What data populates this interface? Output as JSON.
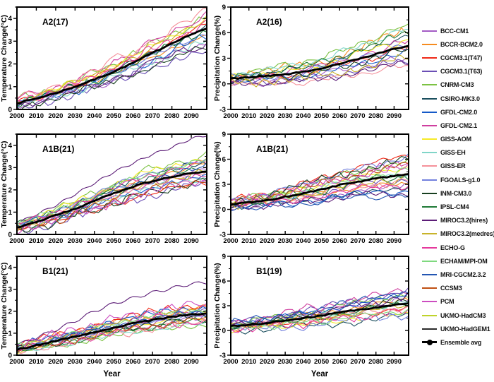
{
  "figure": {
    "xlabel": "Year",
    "background": "#ffffff",
    "axis_color": "#000000"
  },
  "legend": {
    "items": [
      {
        "label": "BCC-CM1",
        "color": "#a35bc4",
        "marker": false
      },
      {
        "label": "BCCR-BCM2.0",
        "color": "#f68b1f",
        "marker": false
      },
      {
        "label": "CGCM3.1(T47)",
        "color": "#ef2917",
        "marker": false
      },
      {
        "label": "CGCM3.1(T63)",
        "color": "#6b4fb5",
        "marker": false
      },
      {
        "label": "CNRM-CM3",
        "color": "#7cc243",
        "marker": false
      },
      {
        "label": "CSIRO-MK3.0",
        "color": "#1b4f5e",
        "marker": false
      },
      {
        "label": "GFDL-CM2.0",
        "color": "#1459c8",
        "marker": false
      },
      {
        "label": "GFDL-CM2.1",
        "color": "#cf3f9f",
        "marker": false
      },
      {
        "label": "GISS-AOM",
        "color": "#f6ea27",
        "marker": false
      },
      {
        "label": "GISS-EH",
        "color": "#80d5c8",
        "marker": false
      },
      {
        "label": "GISS-ER",
        "color": "#f5909a",
        "marker": false
      },
      {
        "label": "FGOALS-g1.0",
        "color": "#7381de",
        "marker": false
      },
      {
        "label": "INM-CM3.0",
        "color": "#173f1f",
        "marker": false
      },
      {
        "label": "IPSL-CM4",
        "color": "#1f7a36",
        "marker": false
      },
      {
        "label": "MIROC3.2(hires)",
        "color": "#5c1d77",
        "marker": false
      },
      {
        "label": "MIROC3.2(medres)",
        "color": "#c8b32a",
        "marker": false
      },
      {
        "label": "ECHO-G",
        "color": "#e53a9c",
        "marker": false
      },
      {
        "label": "ECHAM/MPI-OM",
        "color": "#7fd97f",
        "marker": false
      },
      {
        "label": "MRI-CGCM2.3.2",
        "color": "#2356b2",
        "marker": false
      },
      {
        "label": "CCSM3",
        "color": "#c04f12",
        "marker": false
      },
      {
        "label": "PCM",
        "color": "#cc4dc0",
        "marker": false
      },
      {
        "label": "UKMO-HadCM3",
        "color": "#bfd32b",
        "marker": false
      },
      {
        "label": "UKMO-HadGEM1",
        "color": "#2a2a2a",
        "marker": false
      },
      {
        "label": "Ensemble avg",
        "color": "#000000",
        "marker": true
      }
    ]
  },
  "chart_data": [
    {
      "type": "line",
      "title": "A2(17)",
      "ylabel": "Temperature Change(°C)",
      "xlabel": "",
      "grid": false,
      "legend_position": "right-of-figure",
      "ylim": [
        0,
        4.5
      ],
      "yticks": [
        0,
        1,
        2,
        3,
        4
      ],
      "y_minor_step": 0.5,
      "xlim": [
        2000,
        2098
      ],
      "xticks": [
        2000,
        2010,
        2020,
        2030,
        2040,
        2050,
        2060,
        2070,
        2080,
        2090
      ],
      "n_models": 17,
      "outlier_model": null,
      "x_anchors": [
        2000,
        2010,
        2020,
        2030,
        2040,
        2050,
        2060,
        2070,
        2080,
        2090,
        2098
      ],
      "ensemble": [
        0.28,
        0.48,
        0.72,
        1.0,
        1.32,
        1.66,
        2.05,
        2.48,
        2.92,
        3.3,
        3.55
      ],
      "env_min": [
        0.1,
        0.25,
        0.45,
        0.65,
        0.9,
        1.15,
        1.45,
        1.8,
        2.1,
        2.4,
        2.5
      ],
      "env_max": [
        0.45,
        0.75,
        1.0,
        1.35,
        1.7,
        2.2,
        2.6,
        3.05,
        3.5,
        4.0,
        4.45
      ],
      "env_max_typical": [
        0.45,
        0.75,
        1.0,
        1.35,
        1.7,
        2.2,
        2.6,
        3.05,
        3.5,
        4.0,
        4.45
      ]
    },
    {
      "type": "line",
      "title": "A2(16)",
      "ylabel": "Precipitation Change(%)",
      "xlabel": "",
      "grid": false,
      "legend_position": "right-of-figure",
      "ylim": [
        -3,
        9
      ],
      "yticks": [
        -3,
        0,
        3,
        6,
        9
      ],
      "y_minor_step": 1.5,
      "xlim": [
        2000,
        2098
      ],
      "xticks": [
        2000,
        2010,
        2020,
        2030,
        2040,
        2050,
        2060,
        2070,
        2080,
        2090
      ],
      "n_models": 16,
      "outlier_model": null,
      "x_anchors": [
        2000,
        2010,
        2020,
        2030,
        2040,
        2050,
        2060,
        2070,
        2080,
        2090,
        2098
      ],
      "ensemble": [
        0.6,
        0.75,
        0.95,
        1.1,
        1.4,
        1.8,
        2.3,
        2.9,
        3.5,
        4.1,
        4.4
      ],
      "env_min": [
        0.0,
        0.0,
        -0.1,
        0.0,
        0.1,
        0.3,
        0.6,
        1.0,
        1.3,
        1.7,
        1.9
      ],
      "env_max": [
        1.0,
        1.5,
        1.8,
        2.2,
        2.6,
        3.2,
        3.9,
        4.8,
        5.6,
        6.5,
        7.0
      ],
      "env_max_typical": [
        1.0,
        1.5,
        1.8,
        2.2,
        2.6,
        3.2,
        3.9,
        4.8,
        5.6,
        6.5,
        7.0
      ]
    },
    {
      "type": "line",
      "title": "A1B(21)",
      "ylabel": "Temperature Change(°C)",
      "xlabel": "",
      "grid": false,
      "legend_position": "right-of-figure",
      "ylim": [
        0,
        4.5
      ],
      "yticks": [
        0,
        1,
        2,
        3,
        4
      ],
      "y_minor_step": 0.5,
      "xlim": [
        2000,
        2098
      ],
      "xticks": [
        2000,
        2010,
        2020,
        2030,
        2040,
        2050,
        2060,
        2070,
        2080,
        2090
      ],
      "n_models": 21,
      "outlier_model": "MIROC3.2(hires)",
      "x_anchors": [
        2000,
        2010,
        2020,
        2030,
        2040,
        2050,
        2060,
        2070,
        2080,
        2090,
        2098
      ],
      "ensemble": [
        0.3,
        0.55,
        0.85,
        1.15,
        1.5,
        1.85,
        2.15,
        2.4,
        2.6,
        2.75,
        2.8
      ],
      "env_min": [
        0.1,
        0.3,
        0.5,
        0.75,
        1.0,
        1.3,
        1.55,
        1.75,
        1.95,
        2.1,
        2.1
      ],
      "env_max": [
        0.5,
        0.9,
        1.3,
        1.8,
        2.3,
        2.8,
        3.2,
        3.6,
        3.9,
        4.3,
        4.45
      ],
      "env_max_typical": [
        0.5,
        0.85,
        1.15,
        1.5,
        1.9,
        2.3,
        2.65,
        2.95,
        3.2,
        3.4,
        3.6
      ]
    },
    {
      "type": "line",
      "title": "A1B(21)",
      "ylabel": "Precipitation Change(%)",
      "xlabel": "",
      "grid": false,
      "legend_position": "right-of-figure",
      "ylim": [
        -3,
        9
      ],
      "yticks": [
        -3,
        0,
        3,
        6,
        9
      ],
      "y_minor_step": 1.5,
      "xlim": [
        2000,
        2098
      ],
      "xticks": [
        2000,
        2010,
        2020,
        2030,
        2040,
        2050,
        2060,
        2070,
        2080,
        2090
      ],
      "n_models": 21,
      "outlier_model": null,
      "x_anchors": [
        2000,
        2010,
        2020,
        2030,
        2040,
        2050,
        2060,
        2070,
        2080,
        2090,
        2098
      ],
      "ensemble": [
        0.6,
        0.85,
        1.1,
        1.5,
        1.9,
        2.4,
        2.9,
        3.3,
        3.7,
        4.0,
        4.2
      ],
      "env_min": [
        0.1,
        0.2,
        0.3,
        0.4,
        0.6,
        0.8,
        1.1,
        1.4,
        1.5,
        1.3,
        1.5
      ],
      "env_max": [
        1.1,
        1.6,
        2.0,
        2.6,
        3.2,
        3.9,
        4.6,
        5.2,
        5.8,
        6.3,
        6.8
      ],
      "env_max_typical": [
        1.1,
        1.6,
        2.0,
        2.6,
        3.2,
        3.9,
        4.6,
        5.2,
        5.8,
        6.3,
        6.8
      ]
    },
    {
      "type": "line",
      "title": "B1(21)",
      "ylabel": "Temperature Change(°C)",
      "xlabel": "Year",
      "grid": false,
      "legend_position": "right-of-figure",
      "ylim": [
        0,
        4.5
      ],
      "yticks": [
        0,
        1,
        2,
        3,
        4
      ],
      "y_minor_step": 0.5,
      "xlim": [
        2000,
        2098
      ],
      "xticks": [
        2000,
        2010,
        2020,
        2030,
        2040,
        2050,
        2060,
        2070,
        2080,
        2090
      ],
      "n_models": 21,
      "outlier_model": "MIROC3.2(hires)",
      "x_anchors": [
        2000,
        2010,
        2020,
        2030,
        2040,
        2050,
        2060,
        2070,
        2080,
        2090,
        2098
      ],
      "ensemble": [
        0.25,
        0.45,
        0.65,
        0.85,
        1.05,
        1.25,
        1.45,
        1.6,
        1.75,
        1.85,
        1.9
      ],
      "env_min": [
        0.1,
        0.25,
        0.4,
        0.55,
        0.7,
        0.85,
        1.0,
        1.1,
        1.25,
        1.3,
        1.35
      ],
      "env_max": [
        0.45,
        0.8,
        1.15,
        1.55,
        2.0,
        2.35,
        2.6,
        2.85,
        3.05,
        3.25,
        3.3
      ],
      "env_max_typical": [
        0.45,
        0.7,
        0.95,
        1.2,
        1.45,
        1.65,
        1.85,
        2.05,
        2.2,
        2.3,
        2.35
      ]
    },
    {
      "type": "line",
      "title": "B1(19)",
      "ylabel": "Precipitation Change(%)",
      "xlabel": "Year",
      "grid": false,
      "legend_position": "right-of-figure",
      "ylim": [
        -3,
        9
      ],
      "yticks": [
        -3,
        0,
        3,
        6,
        9
      ],
      "y_minor_step": 1.5,
      "xlim": [
        2000,
        2098
      ],
      "xticks": [
        2000,
        2010,
        2020,
        2030,
        2040,
        2050,
        2060,
        2070,
        2080,
        2090
      ],
      "n_models": 19,
      "outlier_model": null,
      "x_anchors": [
        2000,
        2010,
        2020,
        2030,
        2040,
        2050,
        2060,
        2070,
        2080,
        2090,
        2098
      ],
      "ensemble": [
        0.5,
        0.7,
        0.9,
        1.2,
        1.5,
        1.8,
        2.2,
        2.5,
        2.8,
        3.1,
        3.3
      ],
      "env_min": [
        0.0,
        0.1,
        0.2,
        0.3,
        0.4,
        0.6,
        0.8,
        1.0,
        1.3,
        1.5,
        1.6
      ],
      "env_max": [
        0.9,
        1.3,
        1.7,
        2.1,
        2.6,
        3.0,
        3.5,
        3.9,
        4.3,
        4.8,
        5.2
      ],
      "env_max_typical": [
        0.9,
        1.3,
        1.7,
        2.1,
        2.6,
        3.0,
        3.5,
        3.9,
        4.3,
        4.8,
        5.2
      ]
    }
  ]
}
